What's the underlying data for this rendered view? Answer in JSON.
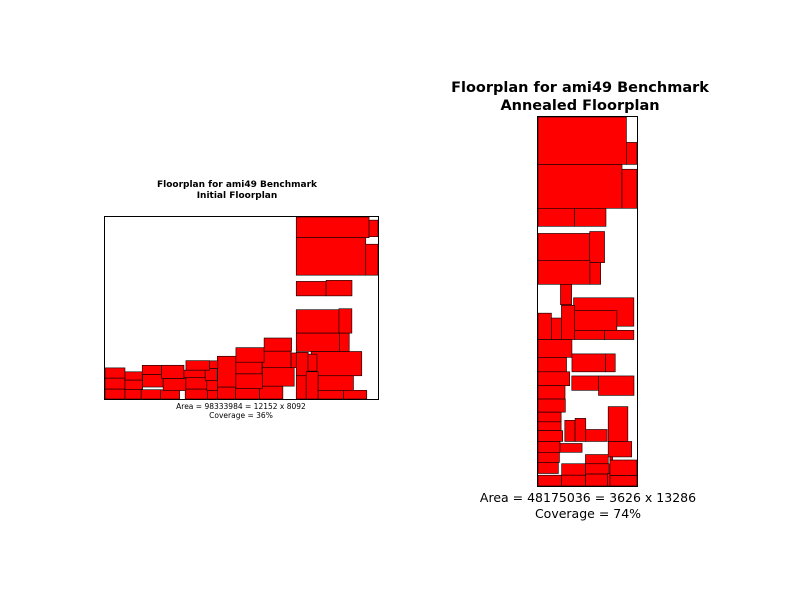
{
  "colors": {
    "block_fill": "#ff0000",
    "block_edge": "#000000",
    "background": "#ffffff",
    "frame": "#000000"
  },
  "chart_data": [
    {
      "type": "floorplan",
      "title_line1": "Floorplan for ami49 Benchmark",
      "title_line2": "Initial Floorplan",
      "caption_area": "Area = 98333984 = 12152 x 8092",
      "caption_coverage": "Coverage = 36%",
      "width": 12152,
      "height": 8092,
      "blocks": [
        [
          8513,
          7171,
          3241,
          921
        ],
        [
          11754,
          7217,
          398,
          735
        ],
        [
          8513,
          5505,
          3094,
          1666
        ],
        [
          11607,
          5505,
          545,
          1377
        ],
        [
          8513,
          4585,
          1329,
          644
        ],
        [
          9842,
          4585,
          1152,
          690
        ],
        [
          8513,
          2929,
          1900,
          1041
        ],
        [
          10413,
          2929,
          576,
          1084
        ],
        [
          8513,
          2113,
          1919,
          816
        ],
        [
          10432,
          2113,
          439,
          816
        ],
        [
          9177,
          1033,
          2252,
          1080
        ],
        [
          8513,
          1033,
          531,
          1044
        ],
        [
          8513,
          0,
          443,
          1033
        ],
        [
          8956,
          0,
          531,
          1212
        ],
        [
          9036,
          1240,
          398,
          755
        ],
        [
          9487,
          386,
          1573,
          647
        ],
        [
          9487,
          0,
          1131,
          386
        ],
        [
          10618,
          0,
          1034,
          386
        ],
        [
          0,
          0,
          889,
          444
        ],
        [
          889,
          0,
          722,
          432
        ],
        [
          1611,
          0,
          854,
          413
        ],
        [
          2465,
          0,
          856,
          411
        ],
        [
          3569,
          0,
          1002,
          444
        ],
        [
          4571,
          0,
          429,
          374
        ],
        [
          5000,
          0,
          816,
          533
        ],
        [
          5816,
          0,
          1062,
          460
        ],
        [
          6878,
          0,
          1040,
          571
        ],
        [
          0,
          444,
          889,
          487
        ],
        [
          889,
          432,
          783,
          412
        ],
        [
          1672,
          532,
          917,
          559
        ],
        [
          2589,
          374,
          1013,
          540
        ],
        [
          3602,
          444,
          930,
          504
        ],
        [
          4532,
          374,
          468,
          444
        ],
        [
          0,
          931,
          889,
          452
        ],
        [
          889,
          844,
          768,
          365
        ],
        [
          1657,
          1091,
          861,
          408
        ],
        [
          2518,
          914,
          997,
          586
        ],
        [
          3515,
          948,
          945,
          336
        ],
        [
          4460,
          818,
          502,
          543
        ],
        [
          5000,
          533,
          827,
          1368
        ],
        [
          5827,
          460,
          1176,
          660
        ],
        [
          7003,
          571,
          1418,
          820
        ],
        [
          3602,
          1284,
          1055,
          421
        ],
        [
          4657,
          1361,
          367,
          336
        ],
        [
          5827,
          1120,
          1159,
          517
        ],
        [
          7003,
          1391,
          1281,
          737
        ],
        [
          8284,
          1391,
          229,
          656
        ],
        [
          5827,
          1637,
          1255,
          647
        ],
        [
          7082,
          2128,
          1224,
          584
        ]
      ]
    },
    {
      "type": "floorplan",
      "title_line1": "Floorplan for ami49 Benchmark",
      "title_line2": "Annealed Floorplan",
      "caption_area": "Area = 48175036 = 3626 x 13286",
      "caption_coverage": "Coverage = 74%",
      "width": 3626,
      "height": 13286,
      "blocks": [
        [
          0,
          11579,
          3239,
          1707
        ],
        [
          3239,
          11579,
          387,
          793
        ],
        [
          0,
          9999,
          3077,
          1580
        ],
        [
          3077,
          9999,
          549,
          1406
        ],
        [
          0,
          9349,
          1337,
          650
        ],
        [
          1337,
          9349,
          1153,
          650
        ],
        [
          0,
          8126,
          1894,
          968
        ],
        [
          1894,
          8042,
          544,
          1121
        ],
        [
          0,
          7262,
          1902,
          864
        ],
        [
          1902,
          7262,
          394,
          780
        ],
        [
          823,
          6527,
          409,
          735
        ],
        [
          1302,
          5753,
          2209,
          1024
        ],
        [
          0,
          5273,
          492,
          950
        ],
        [
          492,
          5273,
          366,
          775
        ],
        [
          858,
          5273,
          487,
          1233
        ],
        [
          1345,
          5605,
          1543,
          708
        ],
        [
          1345,
          5273,
          1093,
          332
        ],
        [
          2438,
          5273,
          1073,
          332
        ],
        [
          0,
          4632,
          1243,
          641
        ],
        [
          0,
          4111,
          1045,
          521
        ],
        [
          1243,
          4111,
          1227,
          646
        ],
        [
          2470,
          4111,
          359,
          646
        ],
        [
          0,
          3611,
          1160,
          500
        ],
        [
          0,
          3131,
          990,
          480
        ],
        [
          1237,
          3444,
          979,
          519
        ],
        [
          2216,
          3262,
          1300,
          701
        ],
        [
          0,
          2659,
          1001,
          472
        ],
        [
          0,
          2310,
          847,
          349
        ],
        [
          0,
          1993,
          847,
          317
        ],
        [
          0,
          1604,
          903,
          389
        ],
        [
          981,
          1604,
          377,
          760
        ],
        [
          1358,
          1604,
          391,
          831
        ],
        [
          1749,
          1604,
          783,
          431
        ],
        [
          2570,
          1604,
          721,
          1255
        ],
        [
          0,
          1213,
          807,
          391
        ],
        [
          807,
          1213,
          808,
          318
        ],
        [
          2570,
          1047,
          862,
          557
        ],
        [
          0,
          850,
          785,
          363
        ],
        [
          0,
          450,
          746,
          400
        ],
        [
          1738,
          800,
          835,
          333
        ],
        [
          1738,
          430,
          866,
          370
        ],
        [
          1738,
          0,
          802,
          430
        ],
        [
          2633,
          0,
          993,
          380
        ],
        [
          2633,
          380,
          989,
          556
        ],
        [
          866,
          389,
          872,
          413
        ],
        [
          0,
          0,
          866,
          389
        ],
        [
          866,
          0,
          872,
          389
        ],
        [
          2540,
          0,
          93,
          443
        ],
        [
          2633,
          936,
          100,
          111
        ]
      ]
    }
  ]
}
